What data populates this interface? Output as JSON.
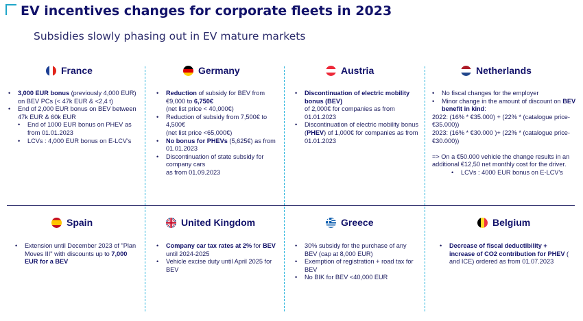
{
  "title": "EV incentives changes for corporate fleets in 2023",
  "subtitle": "Subsidies slowly phasing out in EV mature markets",
  "colors": {
    "accent": "#1fa6c9",
    "navy": "#12126a"
  },
  "countries": {
    "france": {
      "name": "France",
      "flag": "flag-france",
      "b1": {
        "bold": "3,000 EUR bonus",
        "rest": " (previously 4,000 EUR) on BEV PCs  (< 47k EUR & <2,4 t)"
      },
      "b2": "End of 2,000 EUR bonus on BEV between 47k EUR & 60k EUR",
      "b3": "End of 1000 EUR bonus on PHEV as from 01.01.2023",
      "b4": "LCVs : 4,000 EUR bonus on E-LCV's"
    },
    "germany": {
      "name": "Germany",
      "flag": "flag-germany",
      "b1": {
        "bold1": "Reduction",
        "mid": " of subsidy for BEV from €9,000 to ",
        "bold2": "6,750€",
        "line2": "(net list price < 40,000€)"
      },
      "b2": {
        "text": "Reduction of subsidy from 7,500€ to 4,500€",
        "line2": "(net list price <65,000€)"
      },
      "b3": {
        "bold": "No bonus for PHEVs",
        "rest": " (5,625€) as from 01.01.2023"
      },
      "b4": "Discontinuation of state subsidy for company cars",
      "b4_line2": "as from 01.09.2023"
    },
    "austria": {
      "name": "Austria",
      "flag": "flag-austria",
      "b1": {
        "bold1": "Discontinuation of electric mobility bonus (",
        "bold2": "BEV",
        "bold3": ")",
        "line2": "of 2,000€ for companies as from 01.01.2023"
      },
      "b2": {
        "pre": "Discontinuation of electric mobility bonus (",
        "bold": "PHEV",
        "post": ")  of 1,000€ for companies as from 01.01.2023"
      }
    },
    "netherlands": {
      "name": "Netherlands",
      "flag": "flag-netherlands",
      "b1": "No fiscal changes for the employer",
      "b2": {
        "text": "Minor change in the amount of discount on ",
        "bold": "BEV benefit in kind",
        "post": ":"
      },
      "l2022": "2022: (16% * €35.000) + (22% * (catalogue price- €35.000))",
      "l2023": "2023: (16% * €30.000 )+ (22% * (catalogue price- €30.000))",
      "note": "=> On a €50.000 vehicle the change results in an additional €12,50 net monthly cost for the driver.",
      "b3": "LCVs : 4000 EUR bonus on E-LCV's"
    },
    "spain": {
      "name": "Spain",
      "flag": "flag-spain",
      "b1": {
        "text": "Extension until December 2023 of \"Plan Moves III\" with discounts up to ",
        "bold": "7,000 EUR for a BEV"
      }
    },
    "uk": {
      "name": "United Kingdom",
      "flag": "flag-united-kingdom",
      "b1": {
        "bold1": "Company car tax rates at 2%",
        "mid": " for ",
        "bold2": "BEV",
        "rest": " until 2024-2025"
      },
      "b2": "Vehicle excise duty until April 2025 for BEV"
    },
    "greece": {
      "name": "Greece",
      "flag": "flag-greece",
      "b1": "30% subsidy for the purchase of any BEV (cap at 8,000 EUR)",
      "b2": "Exemption of registration + road tax for BEV",
      "b3": "No BIK for BEV <40,000 EUR"
    },
    "belgium": {
      "name": "Belgium",
      "flag": "flag-belgium",
      "b1": {
        "bold": "Decrease of fiscal deductibility + increase of CO2 contribution for PHEV",
        "rest": " ( and ICE) ordered as from 01.07.2023"
      }
    }
  }
}
